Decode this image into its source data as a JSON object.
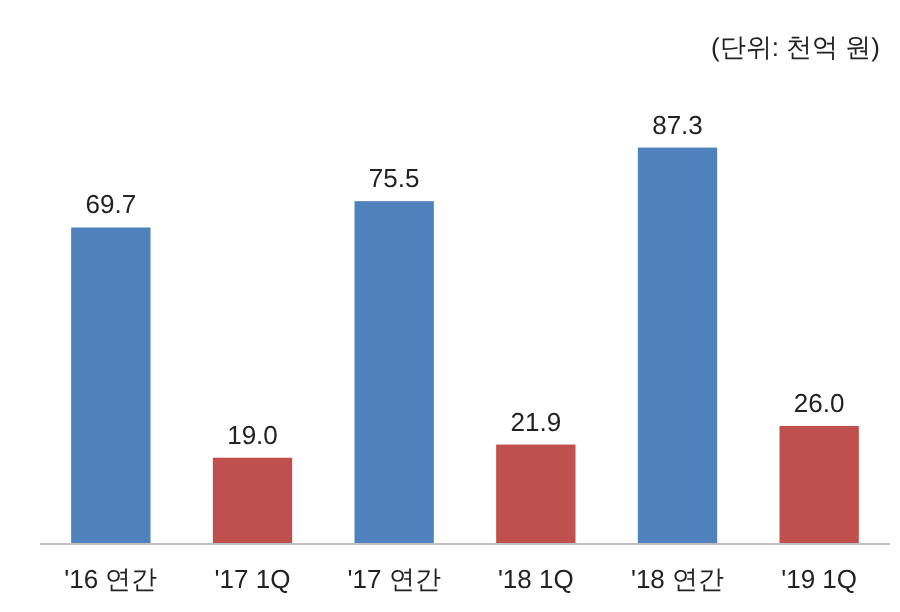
{
  "chart_data": {
    "type": "bar",
    "categories": [
      "'16 연간",
      "'17 1Q",
      "'17 연간",
      "'18 1Q",
      "'18 연간",
      "'19 1Q"
    ],
    "values": [
      69.7,
      19.0,
      75.5,
      21.9,
      87.3,
      26.0
    ],
    "colors": [
      "#4f81bd",
      "#c0504d",
      "#4f81bd",
      "#c0504d",
      "#4f81bd",
      "#c0504d"
    ],
    "value_labels": [
      "69.7",
      "19.0",
      "75.5",
      "21.9",
      "87.3",
      "26.0"
    ],
    "annotations": [
      "(단위: 천억 원)"
    ]
  }
}
